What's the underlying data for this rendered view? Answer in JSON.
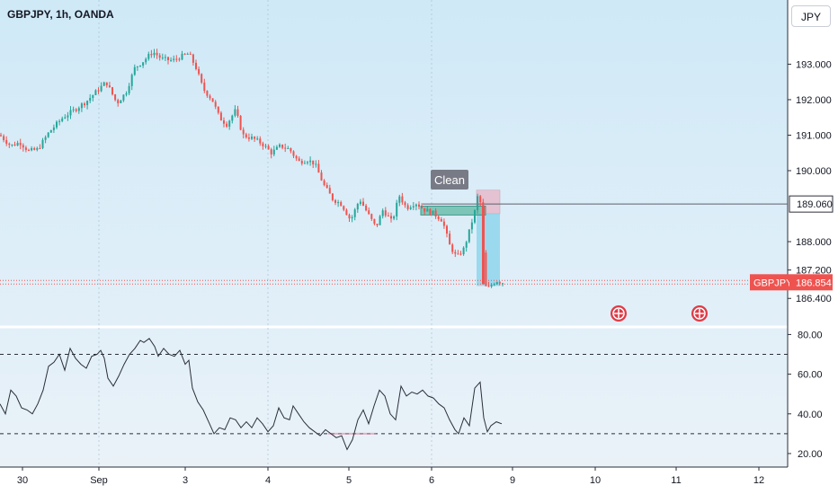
{
  "header": {
    "title": "GBPJPY, 1h, OANDA",
    "currency_button": "JPY"
  },
  "annotation": {
    "label": "Clean"
  },
  "price_tags": {
    "level": {
      "value": "189.060",
      "price": 189.06
    },
    "current": {
      "symbol": "GBPJPY",
      "value": "186.854",
      "price": 186.854
    }
  },
  "colors": {
    "up": "#26a69a",
    "down": "#ef5350",
    "background_top": "#cfe9f7",
    "background_bottom": "#eaf2f8",
    "rsi_line": "#2a2e39",
    "event_icon": "#e03a45"
  },
  "chart_data": [
    {
      "type": "candlestick",
      "title": "GBPJPY, 1h, OANDA",
      "ylim": [
        185.9,
        194.1
      ],
      "yticks": [
        "193.000",
        "192.000",
        "191.000",
        "190.000",
        "188.000",
        "187.200",
        "186.400"
      ],
      "x_tick_labels": [
        "30",
        "Sep",
        "3",
        "4",
        "5",
        "6",
        "9",
        "10",
        "11",
        "12"
      ],
      "close_path": [
        [
          0,
          191.0
        ],
        [
          12,
          190.7
        ],
        [
          22,
          190.8
        ],
        [
          32,
          190.55
        ],
        [
          42,
          190.6
        ],
        [
          55,
          191.1
        ],
        [
          70,
          191.5
        ],
        [
          82,
          191.7
        ],
        [
          96,
          191.95
        ],
        [
          110,
          192.3
        ],
        [
          118,
          192.5
        ],
        [
          130,
          191.9
        ],
        [
          140,
          192.2
        ],
        [
          150,
          192.9
        ],
        [
          160,
          193.1
        ],
        [
          170,
          193.35
        ],
        [
          180,
          193.15
        ],
        [
          192,
          193.1
        ],
        [
          200,
          193.2
        ],
        [
          210,
          193.3
        ],
        [
          218,
          192.9
        ],
        [
          226,
          192.3
        ],
        [
          236,
          192.0
        ],
        [
          244,
          191.5
        ],
        [
          252,
          191.3
        ],
        [
          262,
          191.7
        ],
        [
          270,
          191.0
        ],
        [
          282,
          190.9
        ],
        [
          292,
          190.75
        ],
        [
          302,
          190.5
        ],
        [
          312,
          190.7
        ],
        [
          322,
          190.6
        ],
        [
          332,
          190.25
        ],
        [
          342,
          190.3
        ],
        [
          350,
          190.2
        ],
        [
          360,
          189.6
        ],
        [
          370,
          189.2
        ],
        [
          380,
          189.05
        ],
        [
          390,
          188.6
        ],
        [
          400,
          189.2
        ],
        [
          410,
          188.75
        ],
        [
          418,
          188.4
        ],
        [
          426,
          188.9
        ],
        [
          436,
          188.55
        ],
        [
          444,
          189.3
        ],
        [
          452,
          188.95
        ],
        [
          462,
          189.1
        ],
        [
          472,
          188.9
        ],
        [
          482,
          188.8
        ],
        [
          492,
          188.6
        ],
        [
          500,
          187.9
        ],
        [
          508,
          187.55
        ],
        [
          516,
          187.8
        ],
        [
          522,
          188.3
        ],
        [
          528,
          188.85
        ],
        [
          533,
          189.5
        ],
        [
          536,
          188.5
        ],
        [
          538,
          187.2
        ],
        [
          541,
          186.6
        ],
        [
          545,
          186.75
        ],
        [
          552,
          186.9
        ],
        [
          558,
          186.85
        ]
      ],
      "shaded_zones": [
        {
          "name": "Clean",
          "from": 530,
          "to": 556,
          "lower": 186.75,
          "upper": 189.45
        },
        {
          "name": "",
          "from": 468,
          "to": 540,
          "lower": 188.75,
          "upper": 189.0
        }
      ],
      "horizontal_levels": [
        189.06,
        186.854
      ],
      "events": [
        688,
        778
      ]
    },
    {
      "type": "line",
      "name": "",
      "ylim": [
        15,
        82
      ],
      "yticks": [
        "80.00",
        "60.00",
        "40.00",
        "20.00"
      ],
      "guides": [
        70,
        30
      ],
      "values": [
        [
          0,
          45
        ],
        [
          6,
          40
        ],
        [
          12,
          52
        ],
        [
          18,
          49
        ],
        [
          24,
          43
        ],
        [
          30,
          42
        ],
        [
          36,
          40
        ],
        [
          42,
          45
        ],
        [
          48,
          52
        ],
        [
          54,
          64
        ],
        [
          60,
          66
        ],
        [
          66,
          70
        ],
        [
          72,
          62
        ],
        [
          78,
          73
        ],
        [
          84,
          68
        ],
        [
          90,
          65
        ],
        [
          96,
          63
        ],
        [
          102,
          69
        ],
        [
          108,
          70
        ],
        [
          112,
          72
        ],
        [
          116,
          68
        ],
        [
          120,
          58
        ],
        [
          126,
          54
        ],
        [
          132,
          59
        ],
        [
          138,
          65
        ],
        [
          144,
          70
        ],
        [
          150,
          73
        ],
        [
          156,
          77
        ],
        [
          160,
          76
        ],
        [
          166,
          78
        ],
        [
          172,
          74
        ],
        [
          176,
          69
        ],
        [
          182,
          73
        ],
        [
          188,
          70
        ],
        [
          194,
          69
        ],
        [
          200,
          72
        ],
        [
          206,
          65
        ],
        [
          210,
          67
        ],
        [
          214,
          53
        ],
        [
          220,
          46
        ],
        [
          226,
          42
        ],
        [
          232,
          36
        ],
        [
          238,
          30
        ],
        [
          244,
          33
        ],
        [
          250,
          32
        ],
        [
          256,
          38
        ],
        [
          262,
          37
        ],
        [
          268,
          33
        ],
        [
          274,
          36
        ],
        [
          280,
          33
        ],
        [
          286,
          38
        ],
        [
          292,
          35
        ],
        [
          298,
          31
        ],
        [
          304,
          34
        ],
        [
          310,
          43
        ],
        [
          316,
          38
        ],
        [
          322,
          37
        ],
        [
          326,
          44
        ],
        [
          332,
          40
        ],
        [
          338,
          36
        ],
        [
          344,
          33
        ],
        [
          350,
          31
        ],
        [
          356,
          29
        ],
        [
          362,
          32
        ],
        [
          368,
          30
        ],
        [
          374,
          28
        ],
        [
          380,
          29
        ],
        [
          386,
          22
        ],
        [
          392,
          27
        ],
        [
          398,
          37
        ],
        [
          404,
          42
        ],
        [
          410,
          35
        ],
        [
          416,
          44
        ],
        [
          422,
          52
        ],
        [
          428,
          49
        ],
        [
          434,
          40
        ],
        [
          440,
          37
        ],
        [
          446,
          54
        ],
        [
          452,
          49
        ],
        [
          458,
          51
        ],
        [
          464,
          50
        ],
        [
          470,
          52
        ],
        [
          476,
          49
        ],
        [
          482,
          48
        ],
        [
          488,
          45
        ],
        [
          494,
          43
        ],
        [
          500,
          37
        ],
        [
          506,
          32
        ],
        [
          510,
          30
        ],
        [
          516,
          38
        ],
        [
          522,
          34
        ],
        [
          528,
          53
        ],
        [
          534,
          56
        ],
        [
          538,
          38
        ],
        [
          542,
          31
        ],
        [
          546,
          34
        ],
        [
          552,
          36
        ],
        [
          558,
          35
        ]
      ]
    }
  ]
}
